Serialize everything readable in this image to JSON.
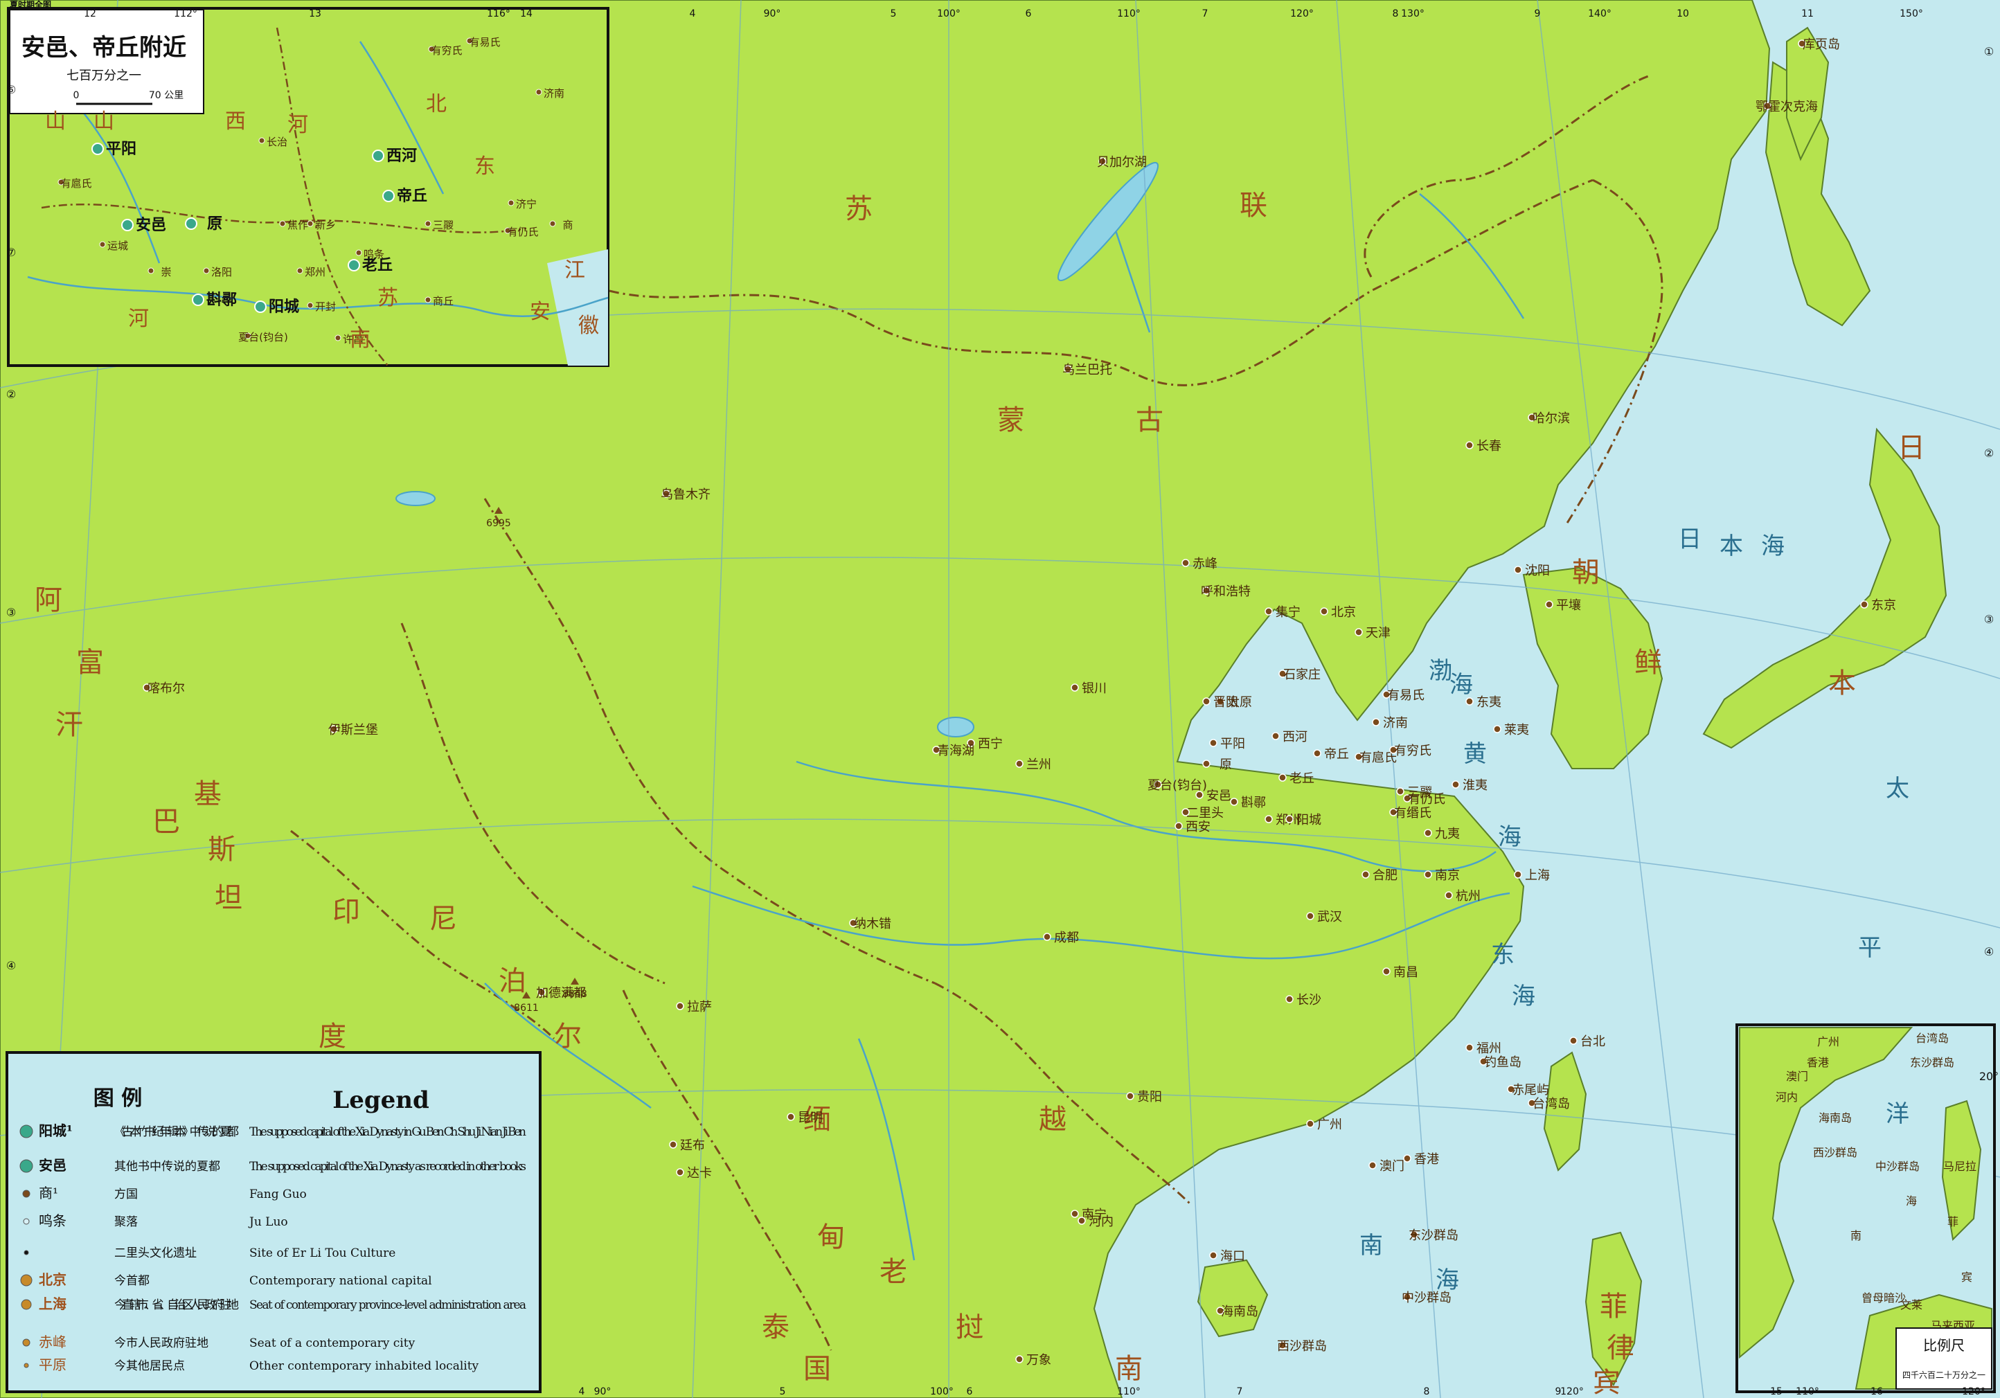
{
  "header": {
    "title": "夏时期全图"
  },
  "frame": {
    "top_ticks": [
      "12",
      "112°",
      "13",
      "116°",
      "14",
      "4",
      "90°",
      "5",
      "100°",
      "6",
      "110°",
      "7",
      "120°",
      "8",
      "130°",
      "9",
      "140°",
      "10",
      "11",
      "150°"
    ],
    "bottom_ticks": [
      "4",
      "90°",
      "5",
      "100°",
      "6",
      "110°",
      "7",
      "8",
      "120°",
      "9",
      "15",
      "110°",
      "16",
      "120°"
    ],
    "left_ticks": [
      "⑥",
      "⑦",
      "②",
      "③",
      "④"
    ],
    "right_ticks": [
      "①",
      "②",
      "③",
      "④",
      "20°"
    ]
  },
  "inset_top": {
    "title": "安邑、帝丘附近",
    "scale_text": "七百万分之一",
    "scale_zero": "0",
    "scale_value": "70 公里",
    "cities": [
      {
        "name": "安邑",
        "kind": "capital"
      },
      {
        "name": "帝丘",
        "kind": "capital"
      },
      {
        "name": "斟鄩",
        "kind": "capital"
      },
      {
        "name": "阳城",
        "kind": "capital"
      },
      {
        "name": "老丘",
        "kind": "capital"
      },
      {
        "name": "西河",
        "kind": "capital"
      },
      {
        "name": "原",
        "kind": "capital"
      },
      {
        "name": "平阳",
        "kind": "capital"
      },
      {
        "name": "商",
        "kind": "fang"
      },
      {
        "name": "崇",
        "kind": "fang"
      },
      {
        "name": "有易氏",
        "kind": "fang"
      },
      {
        "name": "有穷氏",
        "kind": "fang"
      },
      {
        "name": "有仍氏",
        "kind": "fang"
      },
      {
        "name": "有扈氏",
        "kind": "fang"
      },
      {
        "name": "三鬷",
        "kind": "fang"
      },
      {
        "name": "鸣条",
        "kind": "juluo"
      },
      {
        "name": "夏台(钧台)",
        "kind": "other"
      },
      {
        "name": "长治",
        "kind": "other"
      },
      {
        "name": "焦作",
        "kind": "other"
      },
      {
        "name": "新乡",
        "kind": "other"
      },
      {
        "name": "洛阳",
        "kind": "other"
      },
      {
        "name": "郑州",
        "kind": "other"
      },
      {
        "name": "开封",
        "kind": "other"
      },
      {
        "name": "商丘",
        "kind": "other"
      },
      {
        "name": "许昌",
        "kind": "other"
      },
      {
        "name": "济宁",
        "kind": "other"
      },
      {
        "name": "济南",
        "kind": "other"
      },
      {
        "name": "运城",
        "kind": "other"
      }
    ],
    "regions": [
      "山",
      "西",
      "河",
      "北",
      "南",
      "东",
      "江",
      "苏",
      "安",
      "徽",
      "山",
      "河"
    ]
  },
  "main_map": {
    "countries": [
      {
        "name": "苏"
      },
      {
        "name": "联"
      },
      {
        "name": "蒙"
      },
      {
        "name": "古"
      },
      {
        "name": "日"
      },
      {
        "name": "本"
      },
      {
        "name": "朝"
      },
      {
        "name": "鲜"
      },
      {
        "name": "印"
      },
      {
        "name": "度"
      },
      {
        "name": "缅"
      },
      {
        "name": "甸"
      },
      {
        "name": "老"
      },
      {
        "name": "挝"
      },
      {
        "name": "越"
      },
      {
        "name": "南"
      },
      {
        "name": "泰"
      },
      {
        "name": "国"
      },
      {
        "name": "菲"
      },
      {
        "name": "律"
      },
      {
        "name": "宾"
      },
      {
        "name": "巴"
      },
      {
        "name": "基"
      },
      {
        "name": "斯"
      },
      {
        "name": "坦"
      },
      {
        "name": "阿"
      },
      {
        "name": "富"
      },
      {
        "name": "汗"
      },
      {
        "name": "尼"
      },
      {
        "name": "泊"
      },
      {
        "name": "尔"
      }
    ],
    "seas": [
      {
        "name": "日"
      },
      {
        "name": "本"
      },
      {
        "name": "海"
      },
      {
        "name": "黄"
      },
      {
        "name": "海"
      },
      {
        "name": "东"
      },
      {
        "name": "海"
      },
      {
        "name": "南"
      },
      {
        "name": "海"
      },
      {
        "name": "太"
      },
      {
        "name": "平"
      },
      {
        "name": "洋"
      },
      {
        "name": "渤"
      },
      {
        "name": "海"
      }
    ],
    "features": [
      {
        "name": "乌兰巴托"
      },
      {
        "name": "呼和浩特"
      },
      {
        "name": "北京"
      },
      {
        "name": "天津"
      },
      {
        "name": "沈阳"
      },
      {
        "name": "长春"
      },
      {
        "name": "哈尔滨"
      },
      {
        "name": "平壤"
      },
      {
        "name": "石家庄"
      },
      {
        "name": "济南"
      },
      {
        "name": "太原"
      },
      {
        "name": "郑州"
      },
      {
        "name": "西安"
      },
      {
        "name": "兰州"
      },
      {
        "name": "西宁"
      },
      {
        "name": "银川"
      },
      {
        "name": "乌鲁木齐"
      },
      {
        "name": "拉萨"
      },
      {
        "name": "成都"
      },
      {
        "name": "昆明"
      },
      {
        "name": "贵阳"
      },
      {
        "name": "南宁"
      },
      {
        "name": "长沙"
      },
      {
        "name": "武汉"
      },
      {
        "name": "南昌"
      },
      {
        "name": "合肥"
      },
      {
        "name": "南京"
      },
      {
        "name": "杭州"
      },
      {
        "name": "上海"
      },
      {
        "name": "福州"
      },
      {
        "name": "台北"
      },
      {
        "name": "广州"
      },
      {
        "name": "香港"
      },
      {
        "name": "澳门"
      },
      {
        "name": "海口"
      },
      {
        "name": "加德满都"
      },
      {
        "name": "新德里"
      },
      {
        "name": "伊斯兰堡"
      },
      {
        "name": "喀布尔"
      },
      {
        "name": "廷布"
      },
      {
        "name": "达卡"
      },
      {
        "name": "河内"
      },
      {
        "name": "万象"
      },
      {
        "name": "东京"
      },
      {
        "name": "赤峰"
      },
      {
        "name": "集宁"
      },
      {
        "name": "东沙群岛"
      },
      {
        "name": "西沙群岛"
      },
      {
        "name": "中沙群岛"
      },
      {
        "name": "钓鱼岛"
      },
      {
        "name": "赤尾屿"
      },
      {
        "name": "海南岛"
      },
      {
        "name": "台湾岛"
      },
      {
        "name": "库页岛"
      },
      {
        "name": "鄂霍次克海"
      },
      {
        "name": "贝加尔湖"
      },
      {
        "name": "青海湖"
      },
      {
        "name": "纳木错"
      },
      {
        "name": "有易氏"
      },
      {
        "name": "有扈氏"
      },
      {
        "name": "有穷氏"
      },
      {
        "name": "有仍氏"
      },
      {
        "name": "有缗氏"
      },
      {
        "name": "三鬷"
      },
      {
        "name": "东夷"
      },
      {
        "name": "莱夷"
      },
      {
        "name": "淮夷"
      },
      {
        "name": "九夷"
      },
      {
        "name": "斟鄩"
      },
      {
        "name": "阳城"
      },
      {
        "name": "帝丘"
      },
      {
        "name": "老丘"
      },
      {
        "name": "安邑"
      },
      {
        "name": "平阳"
      },
      {
        "name": "晋阳"
      },
      {
        "name": "西河"
      },
      {
        "name": "原"
      },
      {
        "name": "夏台(钧台)"
      },
      {
        "name": "二里头"
      }
    ],
    "peak_labels": [
      "6995",
      "8848",
      "8611"
    ]
  },
  "inset_bottom": {
    "labels": [
      "广州",
      "台湾岛",
      "东沙群岛",
      "香港",
      "澳门",
      "河内",
      "海南岛",
      "西沙群岛",
      "中沙群岛",
      "南",
      "海",
      "马尼拉",
      "曾母暗沙",
      "菲",
      "宾",
      "文莱",
      "马来西亚"
    ],
    "scale_title": "比例尺",
    "scale_text": "四千六百二十万分之一"
  },
  "legend": {
    "title_cn": "图    例",
    "title_en": "Legend",
    "rows": [
      {
        "sample": "阳城¹",
        "cn": "《古本竹书纪年辑本》中传说的夏都",
        "en": "The supposed capital of the Xia Dynasty in Gu Ben Ch Shu Ji Nian Ji Ben",
        "kind": "capital1"
      },
      {
        "sample": "安邑",
        "cn": "其他书中传说的夏都",
        "en": "The supposed capital of the Xia Dynasty as recorded in other books",
        "kind": "capital2"
      },
      {
        "sample": "商¹",
        "cn": "方国",
        "en": "Fang Guo",
        "kind": "fang"
      },
      {
        "sample": "鸣条",
        "cn": "聚落",
        "en": "Ju Luo",
        "kind": "juluo"
      },
      {
        "sample": "",
        "cn": "二里头文化遗址",
        "en": "Site of Er Li Tou Culture",
        "kind": "erlitou"
      },
      {
        "sample": "北京",
        "cn": "今首都",
        "en": "Contemporary national capital",
        "kind": "national"
      },
      {
        "sample": "上海",
        "cn": "今直辖市、省、自治区人民政府驻地",
        "en": "Seat of contemporary province-level administration area",
        "kind": "province"
      },
      {
        "sample": "赤峰",
        "cn": "今市人民政府驻地",
        "en": "Seat of a contemporary city",
        "kind": "city"
      },
      {
        "sample": "平原",
        "cn": "今其他居民点",
        "en": "Other contemporary inhabited locality",
        "kind": "locality"
      }
    ]
  },
  "colors": {
    "land": "#b5e34e",
    "sea": "#c4e9ef",
    "border": "#7a4a1c",
    "river": "#4aa3c9",
    "text_dark": "#1a1a1a",
    "capital_marker": "#3aa88a"
  }
}
